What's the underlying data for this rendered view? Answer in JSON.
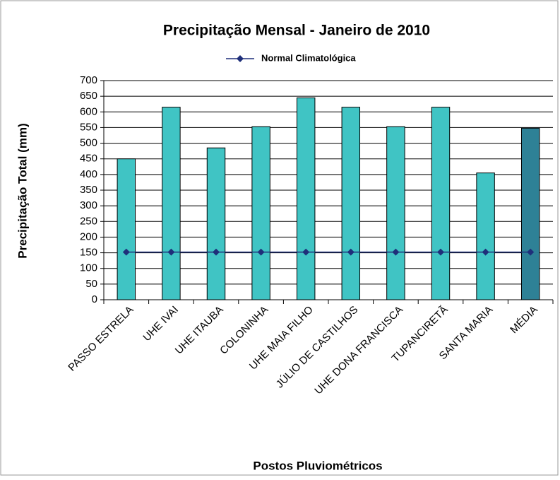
{
  "chart_data": {
    "type": "bar",
    "title": "Precipitação Mensal - Janeiro de 2010",
    "x_label": "Postos Pluviométricos",
    "y_label": "Precipitação Total (mm)",
    "categories": [
      "PASSO ESTRELA",
      "UHE IVAI",
      "UHE ITAUBA",
      "COLONINHA",
      "UHE MAIA FILHO",
      "JÚLIO DE CASTILHOS",
      "UHE DONA FRANCISCA",
      "TUPANCIRETÃ",
      "SANTA MARIA",
      "MÉDIA"
    ],
    "values": [
      450,
      615,
      485,
      553,
      645,
      615,
      553,
      615,
      405,
      548
    ],
    "colors": [
      "#40c4c4",
      "#40c4c4",
      "#40c4c4",
      "#40c4c4",
      "#40c4c4",
      "#40c4c4",
      "#40c4c4",
      "#40c4c4",
      "#40c4c4",
      "#2e8196"
    ],
    "series": [
      {
        "name": "Normal Climatológica",
        "color": "#1f2f7a",
        "values": [
          152,
          152,
          152,
          152,
          152,
          152,
          152,
          152,
          152,
          152
        ]
      }
    ],
    "ylim": [
      0,
      700
    ],
    "yticks": [
      0,
      50,
      100,
      150,
      200,
      250,
      300,
      350,
      400,
      450,
      500,
      550,
      600,
      650,
      700
    ],
    "grid": true,
    "legend": "top"
  }
}
